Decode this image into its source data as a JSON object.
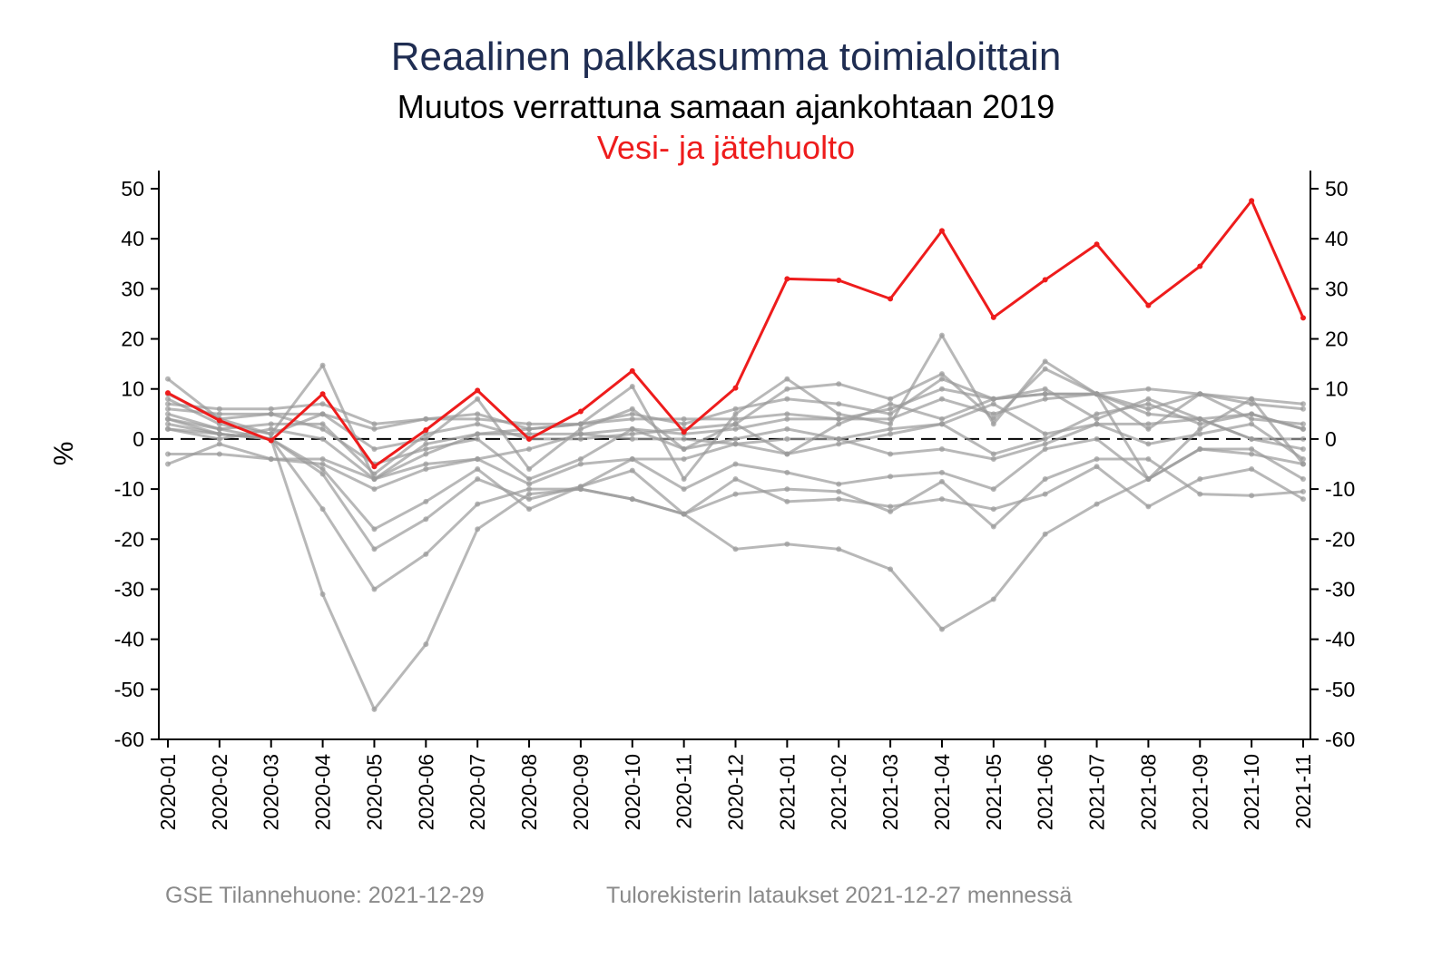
{
  "chart_data": {
    "type": "line",
    "title": "Reaalinen palkkasumma toimialoittain",
    "subtitle": "Muutos verrattuna samaan ajankohtaan 2019",
    "highlight_label": "Vesi- ja jätehuolto",
    "ylabel": "%",
    "xlabel": "",
    "ylim": [
      -60,
      50
    ],
    "yticks": [
      50,
      40,
      30,
      20,
      10,
      0,
      -10,
      -20,
      -30,
      -40,
      -50,
      -60
    ],
    "reference_line": 0,
    "categories": [
      "2020-01",
      "2020-02",
      "2020-03",
      "2020-04",
      "2020-05",
      "2020-06",
      "2020-07",
      "2020-08",
      "2020-09",
      "2020-10",
      "2020-11",
      "2020-12",
      "2021-01",
      "2021-02",
      "2021-03",
      "2021-04",
      "2021-05",
      "2021-06",
      "2021-07",
      "2021-08",
      "2021-09",
      "2021-10",
      "2021-11"
    ],
    "highlight_color": "#ee1c1c",
    "other_color": "#b4b4b4",
    "highlight_series": {
      "name": "Vesi- ja jätehuolto",
      "values": [
        9.2,
        3.7,
        -0.3,
        9.0,
        -5.5,
        1.8,
        9.7,
        0.0,
        5.5,
        13.6,
        1.4,
        10.2,
        32.0,
        31.7,
        28.0,
        41.6,
        24.3,
        31.8,
        38.9,
        26.7,
        34.5,
        47.6,
        24.2
      ]
    },
    "series": [
      {
        "values": [
          2,
          1,
          0,
          -31,
          -54,
          -41,
          -18,
          -11,
          -10,
          -12,
          -15,
          -22,
          -21,
          -22,
          -26,
          -38,
          -32,
          -19,
          -13,
          -8,
          -2,
          -3,
          -5
        ]
      },
      {
        "values": [
          4,
          1,
          0,
          -14,
          -30,
          -23,
          -13,
          -10,
          -10,
          -12,
          -15,
          -8,
          -12.5,
          -12,
          -13.5,
          -12,
          -14,
          -11,
          -5.5,
          -13.5,
          -8,
          -6,
          -12
        ]
      },
      {
        "values": [
          5,
          2,
          0,
          -7,
          -22,
          -16,
          -8,
          -12,
          -9.5,
          -6.3,
          -15,
          -11,
          -10,
          -10.5,
          -14.5,
          -8.5,
          -17.5,
          -8,
          -4,
          -4,
          -11,
          -11.3,
          -10.5
        ]
      },
      {
        "values": [
          3,
          1,
          0,
          -6,
          -18,
          -12.5,
          -6,
          -14,
          -9.5,
          -4,
          -10,
          -5,
          -6.7,
          -9,
          -7.5,
          -6.7,
          -10,
          -2,
          0,
          -8,
          -2,
          -2,
          -8
        ]
      },
      {
        "values": [
          8,
          3,
          1,
          14.7,
          -8,
          -1,
          1,
          2,
          3,
          10.5,
          -8,
          5,
          12,
          5,
          3,
          20.7,
          3,
          15.5,
          9,
          -8,
          2,
          8,
          -5
        ]
      },
      {
        "values": [
          12,
          4,
          1,
          5,
          -2,
          0,
          8,
          -6,
          2,
          6,
          -2,
          3,
          10,
          11,
          8,
          13,
          4,
          14,
          9,
          2,
          9,
          8,
          7
        ]
      },
      {
        "values": [
          7,
          6,
          6,
          7,
          3,
          4,
          4,
          3,
          3,
          5,
          3,
          6,
          8,
          7,
          5,
          12,
          8,
          9,
          9,
          10,
          9,
          7,
          6
        ]
      },
      {
        "values": [
          6,
          5,
          5,
          5,
          2,
          4,
          5,
          2,
          3,
          4,
          4,
          4,
          5,
          4,
          4,
          8,
          5,
          8,
          9,
          6,
          9,
          4,
          3
        ]
      },
      {
        "values": [
          -5,
          -1,
          -4,
          -4,
          -8,
          -5,
          -4,
          -2,
          1,
          0,
          0,
          -1,
          0,
          0,
          -3,
          -2,
          -4,
          -1,
          3,
          3,
          4,
          0,
          -2
        ]
      },
      {
        "values": [
          -3,
          -3,
          -4,
          -5,
          -10,
          -6,
          -4,
          -9,
          -5,
          -4,
          -4,
          -1,
          -3,
          -1,
          1,
          3,
          -3,
          0,
          5,
          7,
          3,
          5,
          2
        ]
      },
      {
        "values": [
          2,
          0,
          2,
          0,
          -8,
          -3,
          1,
          1,
          1,
          2,
          1,
          2,
          4,
          4,
          6,
          10,
          8,
          9,
          9,
          5,
          4,
          0,
          0
        ]
      },
      {
        "values": [
          4,
          2,
          3,
          3,
          -7,
          1,
          3,
          0,
          0,
          1,
          2,
          3,
          -3,
          3,
          7,
          4,
          8,
          10,
          4,
          8,
          4,
          5,
          2
        ]
      },
      {
        "values": [
          9,
          4,
          5,
          2,
          -5,
          -2,
          0,
          -8,
          -4,
          2,
          -2,
          0,
          2,
          0,
          2,
          3,
          7,
          1,
          3,
          -1,
          1,
          3,
          -4
        ]
      }
    ]
  },
  "footer": {
    "source": "GSE Tilannehuone: 2021-12-29",
    "note": "Tulorekisterin lataukset 2021-12-27 mennessä"
  }
}
